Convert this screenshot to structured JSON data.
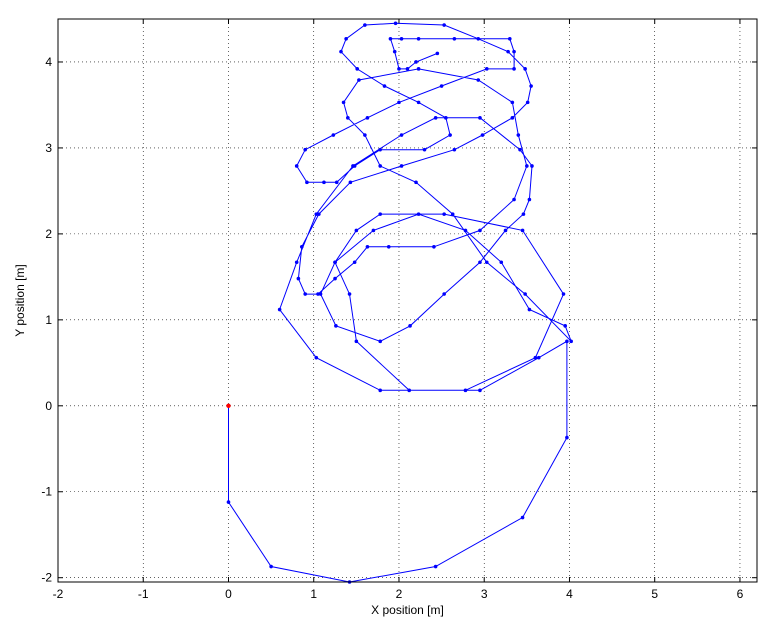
{
  "chart_data": {
    "type": "line",
    "xlabel": "X position [m]",
    "ylabel": "Y position [m]",
    "xlim": [
      -2,
      6.2
    ],
    "ylim": [
      -2.05,
      4.5
    ],
    "xticks": [
      -2,
      -1,
      0,
      1,
      2,
      3,
      4,
      5,
      6
    ],
    "yticks": [
      -2,
      -1,
      0,
      1,
      2,
      3,
      4
    ],
    "grid": true,
    "series": [
      {
        "color": "#0000ff",
        "marker": "dot",
        "x": [
          0,
          0,
          0.5,
          1.42,
          2.43,
          3.45,
          3.97,
          3.97,
          3.64,
          2.95,
          2.12,
          1.5,
          1.42,
          1.25,
          1.5,
          1.78,
          2.53,
          3.45,
          3.93,
          3.6,
          2.78,
          1.78,
          1.03,
          0.6,
          0.8,
          1.03,
          1.46,
          2.03,
          2.43,
          2.95,
          3.42,
          3.56,
          3.53,
          3.46,
          3.25,
          2.95,
          2.53,
          2.13,
          1.78,
          1.26,
          1.08,
          1.25,
          1.7,
          2.23,
          2.78,
          3.2,
          3.53,
          3.95,
          4.02,
          3.48,
          3.03,
          2.63,
          2.2,
          1.78,
          1.6,
          1.4,
          1.35,
          1.53,
          2.23,
          2.93,
          3.33,
          3.4,
          3.5,
          3.35,
          2.95,
          2.41,
          1.88,
          1.63,
          1.48,
          1.25,
          1.05,
          0.9,
          0.82,
          0.86,
          1.06,
          1.43,
          2.03,
          2.65,
          2.98,
          3.33,
          3.51,
          3.55,
          3.48,
          3.28,
          2.93,
          2.53,
          1.96,
          1.6,
          1.38,
          1.32,
          1.51,
          1.83,
          2.23,
          2.55,
          2.6,
          2.3,
          1.78,
          1.48,
          1.27,
          1.12,
          0.92,
          0.8,
          0.9,
          1.23,
          1.63,
          2.0,
          2.5,
          3.03,
          3.35,
          3.35,
          3.3,
          2.65,
          2.23,
          2.03,
          1.9,
          1.95,
          2.0,
          2.1,
          2.2,
          2.45
        ],
        "y": [
          0,
          -1.12,
          -1.87,
          -2.05,
          -1.87,
          -1.3,
          -0.37,
          0.75,
          0.56,
          0.18,
          0.18,
          0.75,
          1.3,
          1.67,
          2.04,
          2.23,
          2.23,
          2.04,
          1.3,
          0.56,
          0.18,
          0.18,
          0.56,
          1.12,
          1.67,
          2.23,
          2.79,
          3.15,
          3.35,
          3.35,
          2.98,
          2.79,
          2.4,
          2.23,
          2.04,
          1.67,
          1.3,
          0.93,
          0.75,
          0.93,
          1.3,
          1.67,
          2.04,
          2.23,
          2.04,
          1.67,
          1.12,
          0.93,
          0.75,
          1.3,
          1.67,
          2.23,
          2.6,
          2.79,
          3.15,
          3.35,
          3.53,
          3.79,
          3.92,
          3.79,
          3.53,
          3.15,
          2.79,
          2.4,
          2.04,
          1.85,
          1.85,
          1.85,
          1.67,
          1.48,
          1.3,
          1.3,
          1.48,
          1.85,
          2.23,
          2.6,
          2.79,
          2.98,
          3.15,
          3.35,
          3.53,
          3.72,
          3.92,
          4.12,
          4.27,
          4.43,
          4.45,
          4.43,
          4.27,
          4.12,
          3.92,
          3.72,
          3.53,
          3.35,
          3.15,
          2.98,
          2.98,
          2.79,
          2.6,
          2.6,
          2.6,
          2.79,
          2.98,
          3.15,
          3.35,
          3.53,
          3.72,
          3.92,
          3.92,
          4.12,
          4.27,
          4.27,
          4.27,
          4.27,
          4.27,
          4.12,
          3.92,
          3.92,
          4.0,
          4.1
        ]
      }
    ],
    "start_marker": {
      "x": 0,
      "y": 0,
      "color": "#ff0000"
    }
  }
}
